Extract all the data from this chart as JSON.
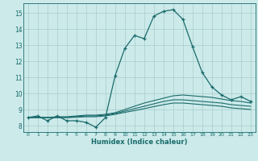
{
  "xlabel": "Humidex (Indice chaleur)",
  "background_color": "#cceaea",
  "grid_color": "#aacccc",
  "line_color": "#1a6b6b",
  "xlim": [
    -0.5,
    23.5
  ],
  "ylim": [
    7.6,
    15.6
  ],
  "xticks": [
    0,
    1,
    2,
    3,
    4,
    5,
    6,
    7,
    8,
    9,
    10,
    11,
    12,
    13,
    14,
    15,
    16,
    17,
    18,
    19,
    20,
    21,
    22,
    23
  ],
  "yticks": [
    8,
    9,
    10,
    11,
    12,
    13,
    14,
    15
  ],
  "line1_x": [
    0,
    1,
    2,
    3,
    4,
    5,
    6,
    7,
    8,
    9,
    10,
    11,
    12,
    13,
    14,
    15,
    16,
    17,
    18,
    19,
    20,
    21,
    22,
    23
  ],
  "line1_y": [
    8.5,
    8.6,
    8.3,
    8.6,
    8.3,
    8.3,
    8.2,
    7.9,
    8.5,
    11.1,
    12.8,
    13.6,
    13.4,
    14.8,
    15.1,
    15.2,
    14.6,
    12.9,
    11.3,
    10.4,
    9.9,
    9.6,
    9.8,
    9.5
  ],
  "line2_x": [
    0,
    1,
    2,
    3,
    4,
    5,
    6,
    7,
    8,
    9,
    10,
    11,
    12,
    13,
    14,
    15,
    16,
    17,
    18,
    19,
    20,
    21,
    22,
    23
  ],
  "line2_y": [
    8.5,
    8.5,
    8.5,
    8.55,
    8.55,
    8.6,
    8.65,
    8.65,
    8.7,
    8.8,
    9.0,
    9.2,
    9.4,
    9.55,
    9.7,
    9.85,
    9.9,
    9.85,
    9.8,
    9.75,
    9.65,
    9.55,
    9.5,
    9.4
  ],
  "line3_x": [
    0,
    1,
    2,
    3,
    4,
    5,
    6,
    7,
    8,
    9,
    10,
    11,
    12,
    13,
    14,
    15,
    16,
    17,
    18,
    19,
    20,
    21,
    22,
    23
  ],
  "line3_y": [
    8.5,
    8.5,
    8.5,
    8.5,
    8.5,
    8.55,
    8.6,
    8.6,
    8.65,
    8.75,
    8.9,
    9.05,
    9.2,
    9.35,
    9.5,
    9.6,
    9.6,
    9.55,
    9.5,
    9.45,
    9.4,
    9.3,
    9.25,
    9.2
  ],
  "line4_x": [
    0,
    1,
    2,
    3,
    4,
    5,
    6,
    7,
    8,
    9,
    10,
    11,
    12,
    13,
    14,
    15,
    16,
    17,
    18,
    19,
    20,
    21,
    22,
    23
  ],
  "line4_y": [
    8.5,
    8.5,
    8.5,
    8.5,
    8.5,
    8.52,
    8.55,
    8.55,
    8.6,
    8.7,
    8.82,
    8.93,
    9.05,
    9.18,
    9.3,
    9.4,
    9.4,
    9.35,
    9.3,
    9.25,
    9.2,
    9.1,
    9.05,
    9.0
  ]
}
